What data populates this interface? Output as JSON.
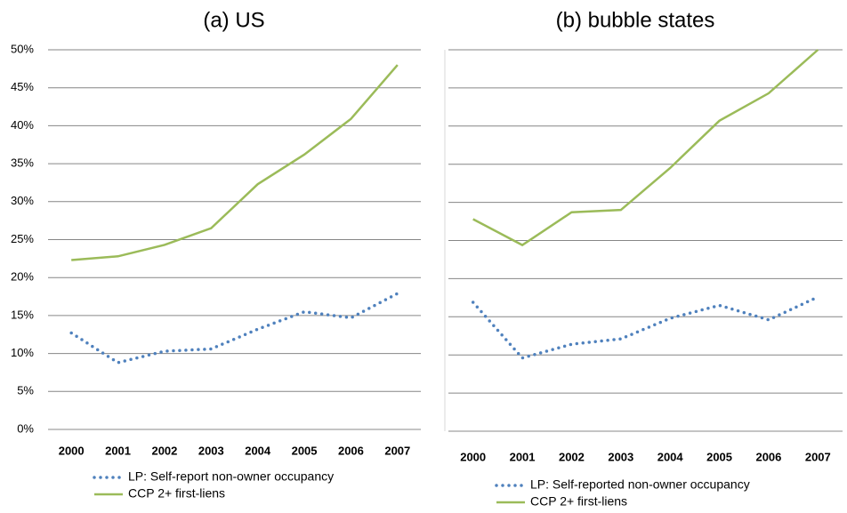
{
  "chart_data": [
    {
      "type": "line",
      "title": "(a) US",
      "categories": [
        "2000",
        "2001",
        "2002",
        "2003",
        "2004",
        "2005",
        "2006",
        "2007"
      ],
      "series": [
        {
          "name": "LP: Self-report non-owner occupancy",
          "color": "#4f81bd",
          "style": "dotted",
          "values": [
            12.7,
            8.8,
            10.3,
            10.6,
            13.2,
            15.5,
            14.7,
            17.9
          ]
        },
        {
          "name": "CCP 2+ first-liens",
          "color": "#9bbb59",
          "style": "solid",
          "values": [
            22.3,
            22.8,
            24.3,
            26.5,
            32.3,
            36.2,
            40.9,
            48.0
          ]
        }
      ],
      "ylim": [
        0,
        50
      ],
      "yticks": [
        {
          "value": 0,
          "label": "0%"
        },
        {
          "value": 5,
          "label": "5%"
        },
        {
          "value": 10,
          "label": "10%"
        },
        {
          "value": 15,
          "label": "15%"
        },
        {
          "value": 20,
          "label": "20%"
        },
        {
          "value": 25,
          "label": "25%"
        },
        {
          "value": 30,
          "label": "30%"
        },
        {
          "value": 35,
          "label": "35%"
        },
        {
          "value": 40,
          "label": "40%"
        },
        {
          "value": 45,
          "label": "45%"
        },
        {
          "value": 50,
          "label": "50%"
        }
      ],
      "grid": true
    },
    {
      "type": "line",
      "title": "(b) bubble states",
      "categories": [
        "2000",
        "2001",
        "2002",
        "2003",
        "2004",
        "2005",
        "2006",
        "2007"
      ],
      "series": [
        {
          "name": "LP: Self-reported non-owner occupancy",
          "color": "#4f81bd",
          "style": "dotted",
          "values": [
            16.9,
            9.6,
            11.4,
            12.1,
            14.8,
            16.5,
            14.6,
            17.6
          ]
        },
        {
          "name": "CCP 2+ first-liens",
          "color": "#9bbb59",
          "style": "solid",
          "values": [
            27.8,
            24.4,
            28.7,
            29.0,
            34.5,
            40.7,
            44.3,
            50.0
          ]
        }
      ],
      "ylim": [
        0,
        50
      ],
      "yticks": [
        0,
        5,
        10,
        15,
        20,
        25,
        30,
        35,
        40,
        45,
        50
      ],
      "ytick_labels": false,
      "grid": true
    }
  ]
}
